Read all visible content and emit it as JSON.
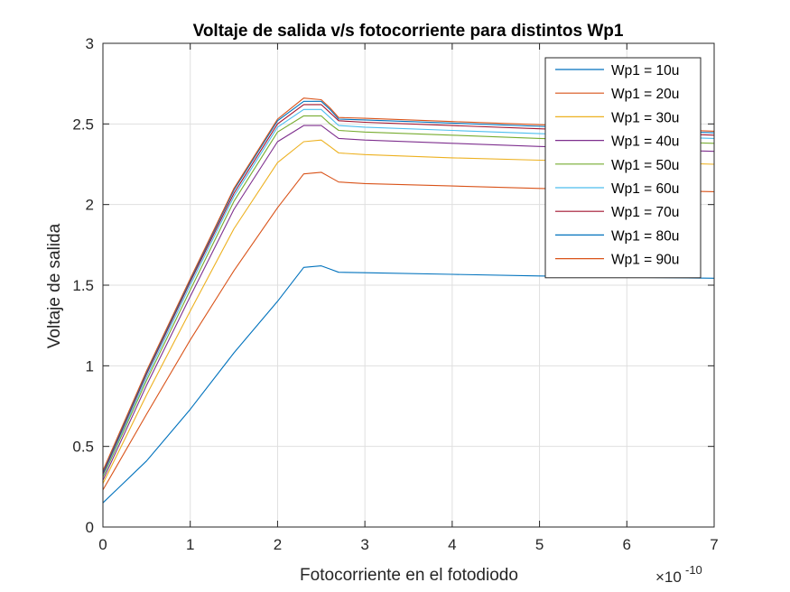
{
  "chart_data": {
    "type": "line",
    "title": "Voltaje de salida v/s fotocorriente para distintos Wp1",
    "xlabel": "Fotocorriente en el fotodiodo",
    "ylabel": "Voltaje de salida",
    "x_exponent_label": "×10",
    "x_exponent_power": "-10",
    "xlim": [
      0,
      7e-10
    ],
    "ylim": [
      0,
      3
    ],
    "x_ticks": [
      0,
      1e-10,
      2e-10,
      3e-10,
      4e-10,
      5e-10,
      6e-10,
      7e-10
    ],
    "x_tick_labels": [
      "0",
      "1",
      "2",
      "3",
      "4",
      "5",
      "6",
      "7"
    ],
    "y_ticks": [
      0,
      0.5,
      1,
      1.5,
      2,
      2.5,
      3
    ],
    "y_tick_labels": [
      "0",
      "0.5",
      "1",
      "1.5",
      "2",
      "2.5",
      "3"
    ],
    "grid": true,
    "legend_position": "top-right",
    "x": [
      0,
      5e-11,
      1e-10,
      1.5e-10,
      2e-10,
      2.3e-10,
      2.5e-10,
      2.6e-10,
      2.7e-10,
      3e-10,
      4e-10,
      5e-10,
      6e-10,
      7e-10
    ],
    "series": [
      {
        "name": "Wp1 = 10u",
        "color": "#0072bd",
        "values": [
          0.15,
          0.41,
          0.73,
          1.08,
          1.4,
          1.61,
          1.62,
          1.6,
          1.58,
          1.577,
          1.567,
          1.557,
          1.549,
          1.543
        ]
      },
      {
        "name": "Wp1 = 20u",
        "color": "#d95319",
        "values": [
          0.23,
          0.7,
          1.16,
          1.59,
          1.98,
          2.19,
          2.2,
          2.17,
          2.14,
          2.13,
          2.115,
          2.1,
          2.09,
          2.08
        ]
      },
      {
        "name": "Wp1 = 30u",
        "color": "#edb120",
        "values": [
          0.27,
          0.82,
          1.34,
          1.85,
          2.26,
          2.39,
          2.4,
          2.36,
          2.32,
          2.31,
          2.29,
          2.275,
          2.265,
          2.25
        ]
      },
      {
        "name": "Wp1 = 40u",
        "color": "#7e2f8e",
        "values": [
          0.29,
          0.88,
          1.43,
          1.97,
          2.39,
          2.49,
          2.49,
          2.45,
          2.41,
          2.4,
          2.38,
          2.36,
          2.345,
          2.33
        ]
      },
      {
        "name": "Wp1 = 50u",
        "color": "#77ac30",
        "values": [
          0.31,
          0.91,
          1.47,
          2.02,
          2.45,
          2.55,
          2.55,
          2.5,
          2.46,
          2.45,
          2.43,
          2.41,
          2.395,
          2.38
        ]
      },
      {
        "name": "Wp1 = 60u",
        "color": "#4dbeee",
        "values": [
          0.32,
          0.93,
          1.5,
          2.05,
          2.48,
          2.59,
          2.59,
          2.54,
          2.49,
          2.48,
          2.46,
          2.44,
          2.425,
          2.41
        ]
      },
      {
        "name": "Wp1 = 70u",
        "color": "#a2142f",
        "values": [
          0.33,
          0.95,
          1.52,
          2.07,
          2.5,
          2.62,
          2.62,
          2.57,
          2.52,
          2.51,
          2.49,
          2.47,
          2.45,
          2.43
        ]
      },
      {
        "name": "Wp1 = 80u",
        "color": "#0072bd",
        "values": [
          0.34,
          0.96,
          1.53,
          2.09,
          2.52,
          2.64,
          2.64,
          2.59,
          2.53,
          2.525,
          2.505,
          2.485,
          2.465,
          2.445
        ]
      },
      {
        "name": "Wp1 = 90u",
        "color": "#d95319",
        "values": [
          0.35,
          0.97,
          1.54,
          2.1,
          2.53,
          2.66,
          2.65,
          2.6,
          2.54,
          2.535,
          2.515,
          2.495,
          2.475,
          2.455
        ]
      }
    ]
  }
}
